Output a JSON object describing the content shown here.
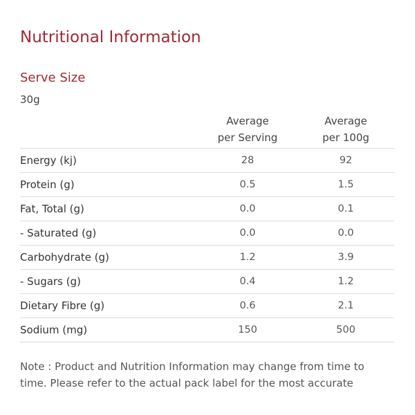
{
  "title": "Nutritional Information",
  "serve": {
    "heading": "Serve Size",
    "value": "30g"
  },
  "table": {
    "headers": [
      {
        "line1": "",
        "line2": ""
      },
      {
        "line1": "Average",
        "line2": "per Serving"
      },
      {
        "line1": "Average",
        "line2": "per 100g"
      }
    ],
    "rows": [
      {
        "name": "Energy (kj)",
        "per_serving": "28",
        "per_100g": "92"
      },
      {
        "name": "Protein (g)",
        "per_serving": "0.5",
        "per_100g": "1.5"
      },
      {
        "name": "Fat, Total (g)",
        "per_serving": "0.0",
        "per_100g": "0.1"
      },
      {
        "name": "- Saturated (g)",
        "per_serving": "0.0",
        "per_100g": "0.0"
      },
      {
        "name": "Carbohydrate (g)",
        "per_serving": "1.2",
        "per_100g": "3.9"
      },
      {
        "name": "- Sugars (g)",
        "per_serving": "0.4",
        "per_100g": "1.2"
      },
      {
        "name": "Dietary Fibre (g)",
        "per_serving": "0.6",
        "per_100g": "2.1"
      },
      {
        "name": "Sodium (mg)",
        "per_serving": "150",
        "per_100g": "500"
      }
    ]
  },
  "note": {
    "line1": "Note : Product and Nutrition Information may change from time to",
    "line2": "time. Please refer to the actual pack label for the most accurate"
  },
  "colors": {
    "accent": "#9b2a33",
    "text": "#3a3a3a",
    "divider": "#dcdcdc"
  }
}
